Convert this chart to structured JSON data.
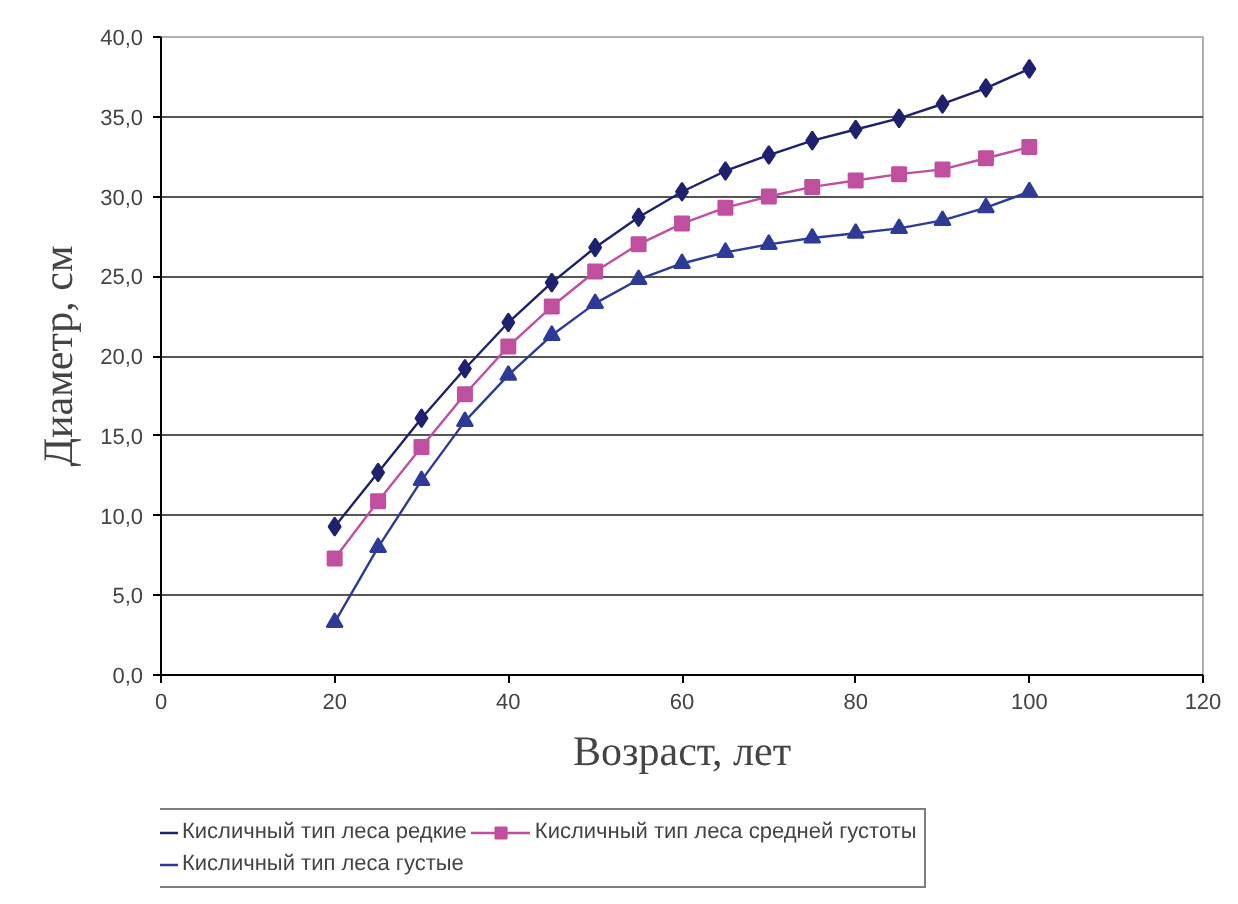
{
  "chart_data": {
    "type": "line",
    "xlabel": "Возраст, лет",
    "ylabel": "Диаметр, см",
    "x": [
      20,
      25,
      30,
      35,
      40,
      45,
      50,
      55,
      60,
      65,
      70,
      75,
      80,
      85,
      90,
      95,
      100
    ],
    "series": [
      {
        "name": "Кисличный тип леса редкие",
        "color": "#1f216e",
        "marker": "diamond",
        "values": [
          9.3,
          12.7,
          16.1,
          19.2,
          22.1,
          24.6,
          26.8,
          28.7,
          30.3,
          31.6,
          32.6,
          33.5,
          34.2,
          34.9,
          35.8,
          36.8,
          38.0
        ]
      },
      {
        "name": "Кисличный тип леса средней густоты",
        "color": "#c0509f",
        "marker": "square",
        "values": [
          7.3,
          10.9,
          14.3,
          17.6,
          20.6,
          23.1,
          25.3,
          27.0,
          28.3,
          29.3,
          30.0,
          30.6,
          31.0,
          31.4,
          31.7,
          32.4,
          33.1
        ]
      },
      {
        "name": "Кисличный тип леса густые",
        "color": "#2e3b96",
        "marker": "triangle",
        "values": [
          3.3,
          8.0,
          12.2,
          15.9,
          18.8,
          21.3,
          23.3,
          24.8,
          25.8,
          26.5,
          27.0,
          27.4,
          27.7,
          28.0,
          28.5,
          29.3,
          30.3
        ]
      }
    ],
    "xlim": [
      0,
      120
    ],
    "xticks": [
      0,
      20,
      40,
      60,
      80,
      100,
      120
    ],
    "ylim": [
      0,
      40
    ],
    "yticks": [
      {
        "value": 0,
        "label": "0,0"
      },
      {
        "value": 5,
        "label": "5,0"
      },
      {
        "value": 10,
        "label": "10,0"
      },
      {
        "value": 15,
        "label": "15,0"
      },
      {
        "value": 20,
        "label": "20,0"
      },
      {
        "value": 25,
        "label": "25,0"
      },
      {
        "value": 30,
        "label": "30,0"
      },
      {
        "value": 35,
        "label": "35,0"
      },
      {
        "value": 40,
        "label": "40,0"
      }
    ],
    "grid": "y",
    "legend": "bottom",
    "line_style": "solid"
  }
}
